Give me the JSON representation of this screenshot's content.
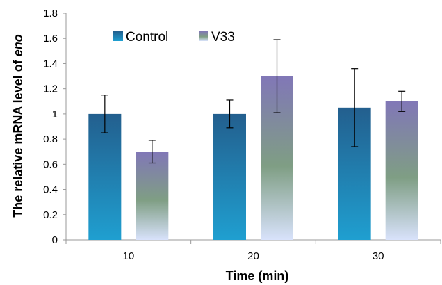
{
  "chart_data": {
    "type": "bar",
    "title": "",
    "xlabel": "Time (min)",
    "ylabel_main": "The relative mRNA level of ",
    "ylabel_italic": "eno",
    "categories": [
      "10",
      "20",
      "30"
    ],
    "ylim": [
      0,
      1.8
    ],
    "yticks": [
      "0",
      "0.2",
      "0.4",
      "0.6",
      "0.8",
      "1",
      "1.2",
      "1.4",
      "1.6",
      "1.8"
    ],
    "legend_position": "top-left",
    "grid": false,
    "series": [
      {
        "name": "Control",
        "values": [
          1.0,
          1.0,
          1.05
        ],
        "errors": [
          0.15,
          0.11,
          0.31
        ],
        "gradient": [
          "#235f8e",
          "#1f9fd0"
        ]
      },
      {
        "name": "V33",
        "values": [
          0.7,
          1.3,
          1.1
        ],
        "errors": [
          0.09,
          0.29,
          0.08
        ],
        "gradient": [
          "#8177b7",
          "#7f9e84",
          "#d8e2fb"
        ]
      }
    ]
  }
}
